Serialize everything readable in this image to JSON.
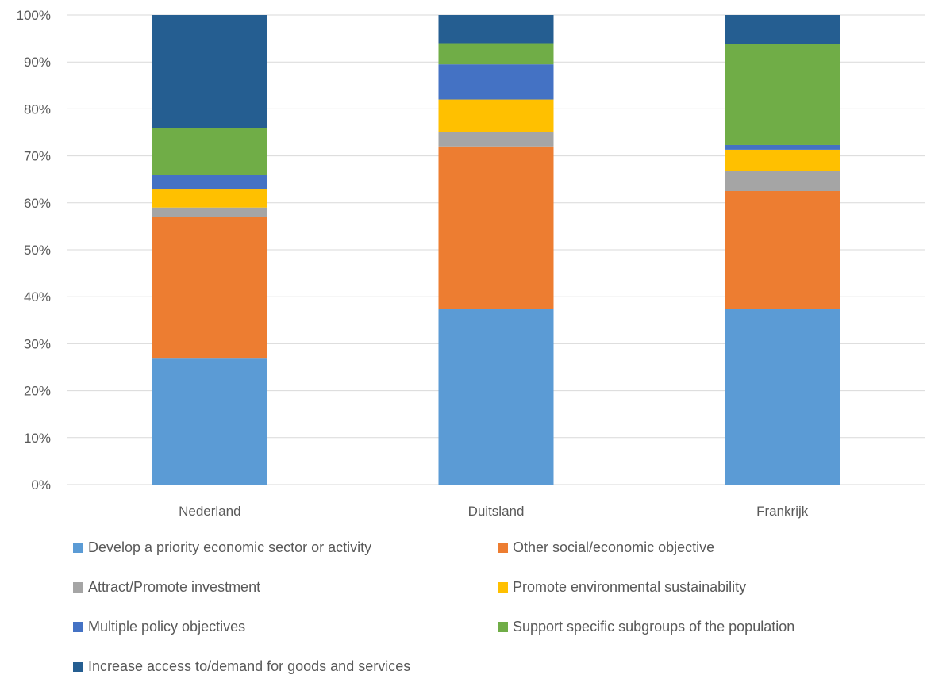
{
  "chart_data": {
    "type": "bar",
    "stacked": true,
    "percent": true,
    "categories": [
      "Nederland",
      "Duitsland",
      "Frankrijk"
    ],
    "yticks": [
      "0%",
      "10%",
      "20%",
      "30%",
      "40%",
      "50%",
      "60%",
      "70%",
      "80%",
      "90%",
      "100%"
    ],
    "ylim": [
      0,
      100
    ],
    "grid": true,
    "legend_position": "bottom",
    "series": [
      {
        "name": "Develop a priority economic sector or activity",
        "color": "#5b9bd5",
        "values": [
          27,
          37.5,
          37.5
        ]
      },
      {
        "name": "Other social/economic objective",
        "color": "#ed7d31",
        "values": [
          30,
          34.5,
          25
        ]
      },
      {
        "name": "Attract/Promote investment",
        "color": "#a5a5a5",
        "values": [
          2,
          3,
          4.3
        ]
      },
      {
        "name": "Promote environmental sustainability",
        "color": "#ffc000",
        "values": [
          4,
          7,
          4.5
        ]
      },
      {
        "name": "Multiple policy objectives",
        "color": "#4472c4",
        "values": [
          3,
          7.5,
          1
        ]
      },
      {
        "name": "Support specific subgroups of the population",
        "color": "#70ad47",
        "values": [
          10,
          4.5,
          21.5
        ]
      },
      {
        "name": "Increase access to/demand for goods and services",
        "color": "#255e91",
        "values": [
          24,
          6,
          6.2
        ]
      }
    ]
  }
}
